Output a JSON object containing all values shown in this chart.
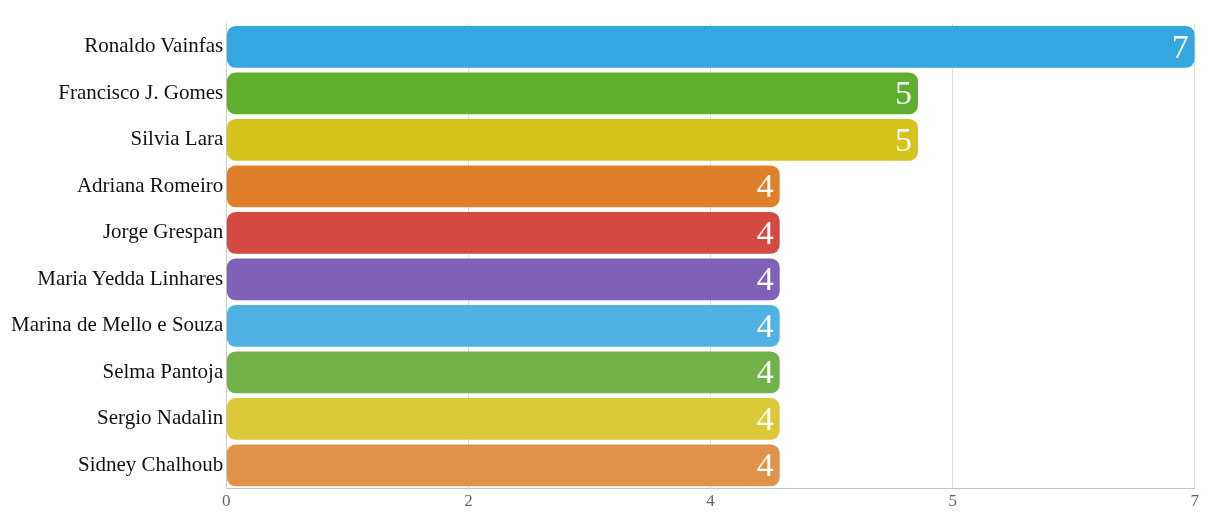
{
  "chart_data": {
    "type": "bar",
    "orientation": "horizontal",
    "categories": [
      "Ronaldo Vainfas",
      "Francisco J. Gomes",
      "Silvia Lara",
      "Adriana Romeiro",
      "Jorge Grespan",
      "Maria Yedda Linhares",
      "Marina de Mello e Souza",
      "Selma Pantoja",
      "Sergio Nadalin",
      "Sidney Chalhoub"
    ],
    "values": [
      7,
      5,
      5,
      4,
      4,
      4,
      4,
      4,
      4,
      4
    ],
    "colors": [
      "#35a7e0",
      "#5fae2e",
      "#d6c31c",
      "#df7f2a",
      "#d54a40",
      "#7f62b8",
      "#4fb2e2",
      "#71b348",
      "#dcc937",
      "#e0924a"
    ],
    "xlim": [
      0,
      7
    ],
    "xticks": [
      0,
      {
        "value": 1.75,
        "label": "2"
      },
      {
        "value": 3.5,
        "label": "4"
      },
      {
        "value": 5.25,
        "label": "5"
      },
      7
    ],
    "grid": "x",
    "data_labels": true
  }
}
